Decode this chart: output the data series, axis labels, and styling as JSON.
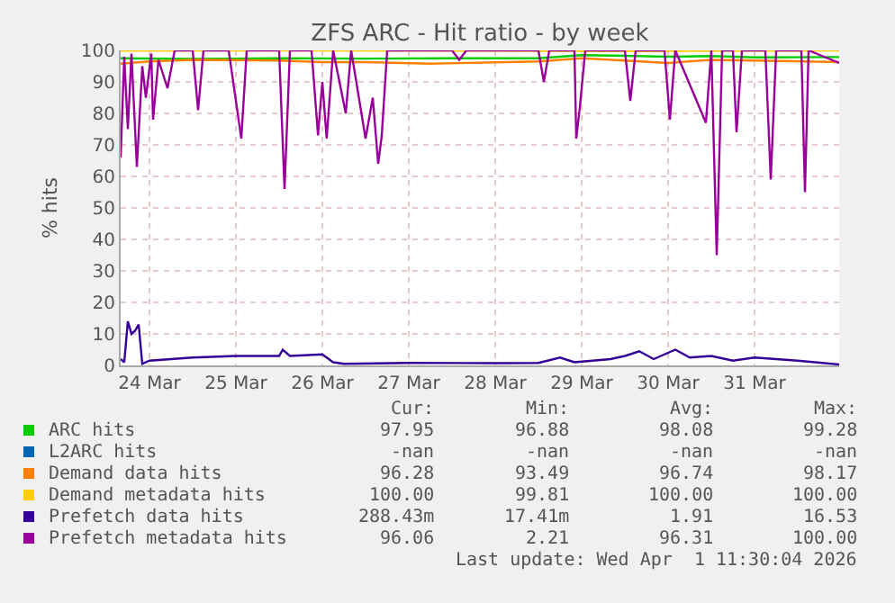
{
  "chart_data": {
    "type": "line",
    "title": "ZFS ARC - Hit ratio - by week",
    "ylabel": "% hits",
    "xlim": [
      "2026-03-24T04:00",
      "2026-04-01T11:30"
    ],
    "xticks": [
      {
        "value": "2026-03-24T12:00",
        "label": "24 Mar"
      },
      {
        "value": "2026-03-25T12:00",
        "label": "25 Mar"
      },
      {
        "value": "2026-03-26T12:00",
        "label": "26 Mar"
      },
      {
        "value": "2026-03-27T12:00",
        "label": "27 Mar"
      },
      {
        "value": "2026-03-28T12:00",
        "label": "28 Mar"
      },
      {
        "value": "2026-03-29T12:00",
        "label": "29 Mar"
      },
      {
        "value": "2026-03-30T12:00",
        "label": "30 Mar"
      },
      {
        "value": "2026-03-31T12:00",
        "label": "31 Mar"
      }
    ],
    "ylim": [
      0,
      100
    ],
    "yticks": [
      0,
      10,
      20,
      30,
      40,
      50,
      60,
      70,
      80,
      90,
      100
    ],
    "grid": true,
    "legend": "bottom",
    "marker": "none",
    "line_style": "solid",
    "series": [
      {
        "name": "ARC hits",
        "color": "#00cc00",
        "x": [
          "2026-03-24T04:00",
          "2026-03-25T00:00",
          "2026-03-26T00:00",
          "2026-03-27T00:00",
          "2026-03-28T00:00",
          "2026-03-29T00:00",
          "2026-03-29T12:00",
          "2026-03-30T00:00",
          "2026-03-30T12:00",
          "2026-03-31T00:00",
          "2026-03-31T12:00",
          "2026-04-01T11:30"
        ],
        "values": [
          97.5,
          97.3,
          97.5,
          97.4,
          97.5,
          97.5,
          98.5,
          98.3,
          98,
          98.2,
          97.8,
          97.9
        ]
      },
      {
        "name": "L2ARC hits",
        "color": "#0066b3"
      },
      {
        "name": "Demand data hits",
        "color": "#ff8000",
        "x": [
          "2026-03-24T04:00",
          "2026-03-24T12:00",
          "2026-03-25T00:00",
          "2026-03-26T00:00",
          "2026-03-26T12:00",
          "2026-03-27T00:00",
          "2026-03-27T18:00",
          "2026-03-28T12:00",
          "2026-03-29T00:00",
          "2026-03-29T12:00",
          "2026-03-30T00:00",
          "2026-03-30T12:00",
          "2026-03-31T00:00",
          "2026-03-31T12:00",
          "2026-04-01T11:30"
        ],
        "values": [
          95.8,
          96.5,
          97,
          96.8,
          96.3,
          96.3,
          95.8,
          96.2,
          96.5,
          97.5,
          96.8,
          96,
          97,
          96.8,
          96.3
        ]
      },
      {
        "name": "Demand metadata hits",
        "color": "#ffcc00",
        "x": [
          "2026-03-24T04:00",
          "2026-03-26T00:00",
          "2026-03-28T00:00",
          "2026-03-30T00:00",
          "2026-04-01T11:30"
        ],
        "values": [
          99.9,
          100,
          99.9,
          99.8,
          100
        ]
      },
      {
        "name": "Prefetch data hits",
        "color": "#330099",
        "x": [
          "2026-03-24T04:00",
          "2026-03-24T05:00",
          "2026-03-24T06:00",
          "2026-03-24T07:00",
          "2026-03-24T08:00",
          "2026-03-24T09:00",
          "2026-03-24T10:00",
          "2026-03-24T12:00",
          "2026-03-25T00:00",
          "2026-03-25T12:00",
          "2026-03-26T00:00",
          "2026-03-26T01:00",
          "2026-03-26T03:00",
          "2026-03-26T12:00",
          "2026-03-26T15:00",
          "2026-03-26T18:00",
          "2026-03-27T12:00",
          "2026-03-28T12:00",
          "2026-03-29T00:00",
          "2026-03-29T06:00",
          "2026-03-29T10:00",
          "2026-03-29T20:00",
          "2026-03-30T00:00",
          "2026-03-30T04:00",
          "2026-03-30T08:00",
          "2026-03-30T14:00",
          "2026-03-30T18:00",
          "2026-03-31T00:00",
          "2026-03-31T06:00",
          "2026-03-31T12:00",
          "2026-04-01T00:00",
          "2026-04-01T11:30"
        ],
        "values": [
          2,
          1,
          14,
          10,
          11,
          13,
          0.5,
          1.5,
          2.5,
          3,
          3,
          5,
          3,
          3.5,
          1,
          0.5,
          0.8,
          0.7,
          0.8,
          2.5,
          1,
          2,
          3,
          4.5,
          2,
          5,
          2.5,
          3,
          1.5,
          2.5,
          1.5,
          0.3
        ]
      },
      {
        "name": "Prefetch metadata hits",
        "color": "#990099",
        "x": [
          "2026-03-24T04:00",
          "2026-03-24T05:00",
          "2026-03-24T06:00",
          "2026-03-24T07:00",
          "2026-03-24T08:30",
          "2026-03-24T10:00",
          "2026-03-24T11:00",
          "2026-03-24T12:30",
          "2026-03-24T13:00",
          "2026-03-24T14:30",
          "2026-03-24T17:00",
          "2026-03-24T19:00",
          "2026-03-25T00:00",
          "2026-03-25T01:30",
          "2026-03-25T03:00",
          "2026-03-25T10:00",
          "2026-03-25T11:30",
          "2026-03-25T13:30",
          "2026-03-25T15:00",
          "2026-03-26T00:00",
          "2026-03-26T01:30",
          "2026-03-26T03:00",
          "2026-03-26T09:00",
          "2026-03-26T10:48",
          "2026-03-26T12:00",
          "2026-03-26T13:12",
          "2026-03-26T15:00",
          "2026-03-26T18:30",
          "2026-03-26T20:00",
          "2026-03-27T00:00",
          "2026-03-27T02:00",
          "2026-03-27T03:30",
          "2026-03-27T04:30",
          "2026-03-27T06:00",
          "2026-03-28T00:00",
          "2026-03-28T02:00",
          "2026-03-28T04:00",
          "2026-03-29T00:00",
          "2026-03-29T01:30",
          "2026-03-29T03:00",
          "2026-03-29T10:00",
          "2026-03-29T10:30",
          "2026-03-29T11:30",
          "2026-03-29T13:00",
          "2026-03-30T00:00",
          "2026-03-30T01:30",
          "2026-03-30T03:00",
          "2026-03-30T11:00",
          "2026-03-30T12:30",
          "2026-03-30T14:00",
          "2026-03-30T22:30",
          "2026-03-31T00:00",
          "2026-03-31T01:30",
          "2026-03-31T03:00",
          "2026-03-31T06:00",
          "2026-03-31T07:00",
          "2026-03-31T08:30",
          "2026-03-31T15:00",
          "2026-03-31T16:30",
          "2026-03-31T18:00",
          "2026-04-01T01:00",
          "2026-04-01T02:00",
          "2026-04-01T03:00",
          "2026-04-01T11:30"
        ],
        "values": [
          66,
          98,
          75,
          99,
          63,
          95,
          85,
          99,
          78,
          97,
          88,
          100,
          100,
          81,
          100,
          100,
          88,
          72,
          100,
          100,
          56,
          100,
          100,
          73,
          90,
          72,
          100,
          80,
          100,
          72,
          85,
          64,
          73,
          100,
          100,
          97,
          100,
          100,
          90,
          100,
          100,
          72,
          82,
          100,
          100,
          84,
          100,
          100,
          78,
          100,
          77,
          100,
          35,
          100,
          100,
          74,
          100,
          100,
          59,
          100,
          100,
          55,
          100,
          96
        ]
      }
    ],
    "annotations": [
      "Cur:",
      "Min:",
      "Avg:",
      "Max:",
      "97.95",
      "96.88",
      "98.08",
      "99.28",
      "-nan",
      "-nan",
      "-nan",
      "-nan",
      "96.28",
      "93.49",
      "96.74",
      "98.17",
      "100.00",
      "99.81",
      "100.00",
      "100.00",
      "288.43m",
      "17.41m",
      "1.91",
      "16.53",
      "96.06",
      "2.21",
      "96.31",
      "100.00",
      "Last update: Wed Apr  1 11:30:04 2026"
    ]
  }
}
